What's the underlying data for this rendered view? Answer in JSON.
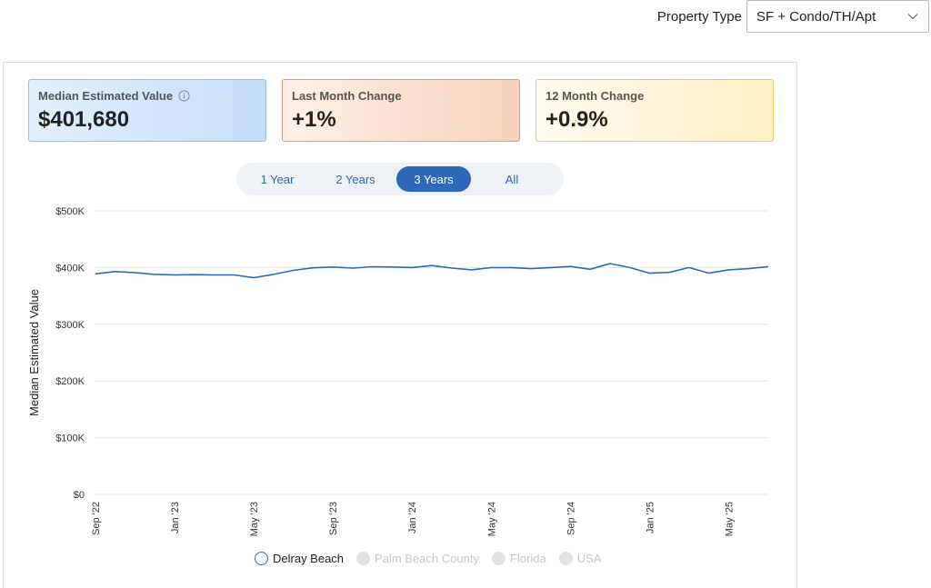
{
  "property_type": {
    "label": "Property Type",
    "selected": "SF + Condo/TH/Apt"
  },
  "cards": [
    {
      "title": "Median Estimated Value",
      "value": "$401,680"
    },
    {
      "title": "Last Month Change",
      "value": "+1%"
    },
    {
      "title": "12 Month Change",
      "value": "+0.9%"
    }
  ],
  "range_buttons": [
    {
      "label": "1 Year",
      "active": false
    },
    {
      "label": "2 Years",
      "active": false
    },
    {
      "label": "3 Years",
      "active": true
    },
    {
      "label": "All",
      "active": false
    }
  ],
  "legend": [
    {
      "label": "Delray Beach",
      "active": true
    },
    {
      "label": "Palm Beach County",
      "active": false
    },
    {
      "label": "Florida",
      "active": false
    },
    {
      "label": "USA",
      "active": false
    }
  ],
  "chart_data": {
    "type": "line",
    "title": "",
    "xlabel": "",
    "ylabel": "Median Estimated Value",
    "ylim": [
      0,
      500000
    ],
    "yticks": [
      0,
      100000,
      200000,
      300000,
      400000,
      500000
    ],
    "ytick_labels": [
      "$0",
      "$100K",
      "$200K",
      "$300K",
      "$400K",
      "$500K"
    ],
    "xtick_labels": [
      "Sep '22",
      "Jan '23",
      "May '23",
      "Sep '23",
      "Jan '24",
      "May '24",
      "Sep '24",
      "Jan '25",
      "May '25"
    ],
    "grid": true,
    "series": [
      {
        "name": "Delray Beach",
        "color": "#2f68b8",
        "values": [
          389000,
          393000,
          391000,
          388000,
          387000,
          387500,
          387000,
          387000,
          382000,
          388000,
          395000,
          399500,
          401000,
          399000,
          401500,
          401000,
          400000,
          403500,
          399000,
          396000,
          400000,
          400000,
          398000,
          400000,
          402000,
          397000,
          407000,
          400000,
          390000,
          391500,
          400000,
          390000,
          396000,
          398000,
          401680
        ]
      }
    ]
  }
}
